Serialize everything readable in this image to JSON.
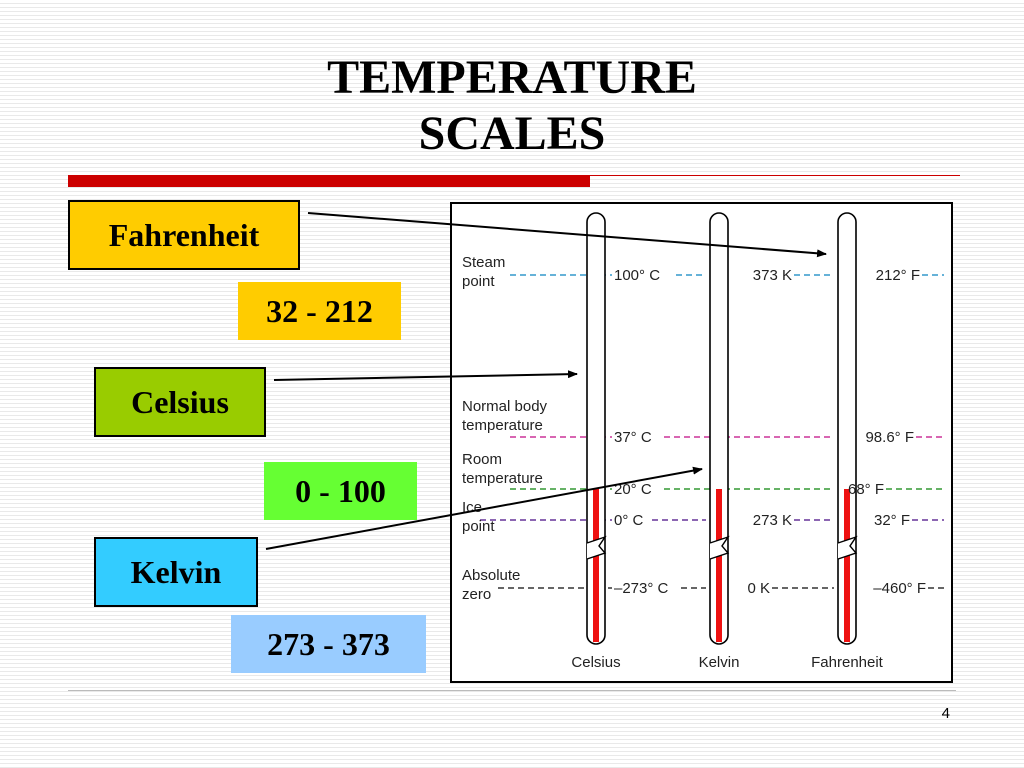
{
  "title": {
    "line1": "TEMPERATURE",
    "line2": "SCALES"
  },
  "scales": [
    {
      "name": "Fahrenheit",
      "range": "32 - 212",
      "box_color": "#ffcc00",
      "range_color": "#ffcc00"
    },
    {
      "name": "Celsius",
      "range": "0 - 100",
      "box_color": "#99cc00",
      "range_color": "#66ff33"
    },
    {
      "name": "Kelvin",
      "range": "273 - 373",
      "box_color": "#33ccff",
      "range_color": "#99ccff"
    }
  ],
  "diagram": {
    "rows": [
      {
        "label1": "Steam",
        "label2": "point",
        "celsius": "100° C",
        "kelvin": "373 K",
        "fahrenheit": "212° F",
        "color": "#3399cc"
      },
      {
        "label1": "Normal body",
        "label2": "temperature",
        "celsius": "37° C",
        "kelvin": "",
        "fahrenheit": "98.6° F",
        "color": "#cc3399"
      },
      {
        "label1": "Room",
        "label2": "temperature",
        "celsius": "20° C",
        "kelvin": "",
        "fahrenheit": "68° F",
        "color": "#339933"
      },
      {
        "label1": "Ice",
        "label2": "point",
        "celsius": "0° C",
        "kelvin": "273 K",
        "fahrenheit": "32° F",
        "color": "#663399"
      },
      {
        "label1": "Absolute",
        "label2": "zero",
        "celsius": "–273° C",
        "kelvin": "0 K",
        "fahrenheit": "–460° F",
        "color": "#333333"
      }
    ],
    "thermometers": [
      "Celsius",
      "Kelvin",
      "Fahrenheit"
    ],
    "mercury_color": "#ee1111"
  },
  "page_number": "4"
}
